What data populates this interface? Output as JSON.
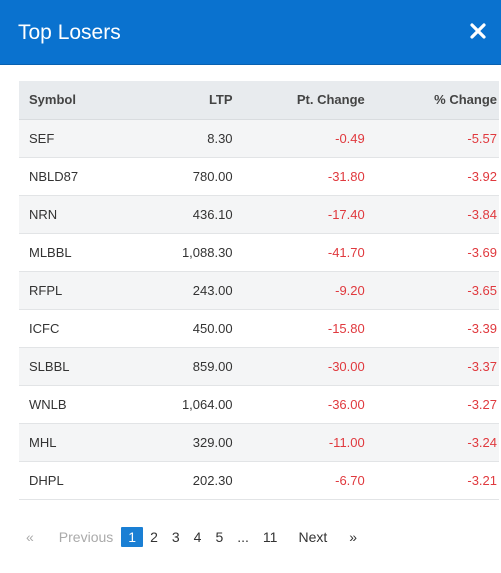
{
  "header": {
    "title": "Top Losers",
    "close_icon": "close-icon"
  },
  "table": {
    "columns": [
      "Symbol",
      "LTP",
      "Pt. Change",
      "% Change"
    ],
    "rows": [
      {
        "symbol": "SEF",
        "ltp": "8.30",
        "pt": "-0.49",
        "pct": "-5.57"
      },
      {
        "symbol": "NBLD87",
        "ltp": "780.00",
        "pt": "-31.80",
        "pct": "-3.92"
      },
      {
        "symbol": "NRN",
        "ltp": "436.10",
        "pt": "-17.40",
        "pct": "-3.84"
      },
      {
        "symbol": "MLBBL",
        "ltp": "1,088.30",
        "pt": "-41.70",
        "pct": "-3.69"
      },
      {
        "symbol": "RFPL",
        "ltp": "243.00",
        "pt": "-9.20",
        "pct": "-3.65"
      },
      {
        "symbol": "ICFC",
        "ltp": "450.00",
        "pt": "-15.80",
        "pct": "-3.39"
      },
      {
        "symbol": "SLBBL",
        "ltp": "859.00",
        "pt": "-30.00",
        "pct": "-3.37"
      },
      {
        "symbol": "WNLB",
        "ltp": "1,064.00",
        "pt": "-36.00",
        "pct": "-3.27"
      },
      {
        "symbol": "MHL",
        "ltp": "329.00",
        "pt": "-11.00",
        "pct": "-3.24"
      },
      {
        "symbol": "DHPL",
        "ltp": "202.30",
        "pt": "-6.70",
        "pct": "-3.21"
      }
    ]
  },
  "pagination": {
    "laquo": "«",
    "previous": "Previous",
    "pages": [
      "1",
      "2",
      "3",
      "4",
      "5"
    ],
    "dots": "...",
    "last": "11",
    "next": "Next",
    "raquo": "»",
    "active_page": "1"
  },
  "colors": {
    "header": "#0a72cf",
    "negative": "#e0393e",
    "active_page": "#1a7fd4"
  }
}
